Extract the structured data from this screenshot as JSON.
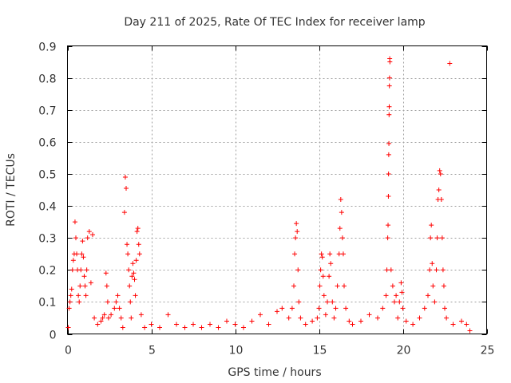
{
  "chart_data": {
    "type": "scatter",
    "title": "Day 211 of 2025, Rate Of TEC Index for receiver lamp",
    "xlabel": "GPS time / hours",
    "ylabel": "ROTI / TECUs",
    "xlim": [
      0,
      25
    ],
    "ylim": [
      0,
      0.9
    ],
    "xticks": [
      0,
      5,
      10,
      15,
      20,
      25
    ],
    "yticks": [
      0,
      0.1,
      0.2,
      0.3,
      0.4,
      0.5,
      0.6,
      0.7,
      0.8,
      0.9
    ],
    "xtick_labels": [
      "0",
      "5",
      "10",
      "15",
      "20",
      "25"
    ],
    "ytick_labels": [
      "0",
      "0.1",
      "0.2",
      "0.3",
      "0.4",
      "0.5",
      "0.6",
      "0.7",
      "0.8",
      "0.9"
    ],
    "grid": true,
    "marker": "+",
    "color": "#ff0000",
    "series": [
      {
        "name": "ROTI",
        "points": [
          [
            0.05,
            0.02
          ],
          [
            0.1,
            0.08
          ],
          [
            0.15,
            0.1
          ],
          [
            0.2,
            0.12
          ],
          [
            0.25,
            0.14
          ],
          [
            0.3,
            0.2
          ],
          [
            0.35,
            0.23
          ],
          [
            0.4,
            0.25
          ],
          [
            0.45,
            0.35
          ],
          [
            0.5,
            0.3
          ],
          [
            0.55,
            0.25
          ],
          [
            0.6,
            0.2
          ],
          [
            0.65,
            0.12
          ],
          [
            0.7,
            0.1
          ],
          [
            0.75,
            0.15
          ],
          [
            0.8,
            0.2
          ],
          [
            0.85,
            0.25
          ],
          [
            0.9,
            0.29
          ],
          [
            0.95,
            0.24
          ],
          [
            1.0,
            0.18
          ],
          [
            1.05,
            0.15
          ],
          [
            1.1,
            0.12
          ],
          [
            1.15,
            0.2
          ],
          [
            1.2,
            0.3
          ],
          [
            1.3,
            0.32
          ],
          [
            1.4,
            0.16
          ],
          [
            1.5,
            0.31
          ],
          [
            1.6,
            0.05
          ],
          [
            1.8,
            0.03
          ],
          [
            2.0,
            0.04
          ],
          [
            2.1,
            0.05
          ],
          [
            2.2,
            0.06
          ],
          [
            2.3,
            0.19
          ],
          [
            2.35,
            0.15
          ],
          [
            2.4,
            0.1
          ],
          [
            2.45,
            0.05
          ],
          [
            2.6,
            0.06
          ],
          [
            2.8,
            0.08
          ],
          [
            2.9,
            0.1
          ],
          [
            3.0,
            0.12
          ],
          [
            3.1,
            0.08
          ],
          [
            3.2,
            0.05
          ],
          [
            3.3,
            0.02
          ],
          [
            3.4,
            0.38
          ],
          [
            3.45,
            0.49
          ],
          [
            3.5,
            0.455
          ],
          [
            3.55,
            0.28
          ],
          [
            3.6,
            0.25
          ],
          [
            3.65,
            0.2
          ],
          [
            3.7,
            0.15
          ],
          [
            3.75,
            0.1
          ],
          [
            3.8,
            0.05
          ],
          [
            3.85,
            0.18
          ],
          [
            3.9,
            0.22
          ],
          [
            3.95,
            0.19
          ],
          [
            4.0,
            0.17
          ],
          [
            4.05,
            0.12
          ],
          [
            4.1,
            0.23
          ],
          [
            4.15,
            0.32
          ],
          [
            4.2,
            0.33
          ],
          [
            4.25,
            0.28
          ],
          [
            4.3,
            0.25
          ],
          [
            4.4,
            0.06
          ],
          [
            4.6,
            0.02
          ],
          [
            5.0,
            0.03
          ],
          [
            5.5,
            0.02
          ],
          [
            6.0,
            0.06
          ],
          [
            6.5,
            0.03
          ],
          [
            7.0,
            0.02
          ],
          [
            7.5,
            0.03
          ],
          [
            8.0,
            0.02
          ],
          [
            8.5,
            0.03
          ],
          [
            9.0,
            0.02
          ],
          [
            9.5,
            0.04
          ],
          [
            10.0,
            0.03
          ],
          [
            10.5,
            0.02
          ],
          [
            11.0,
            0.04
          ],
          [
            11.5,
            0.06
          ],
          [
            12.0,
            0.03
          ],
          [
            12.5,
            0.07
          ],
          [
            12.8,
            0.08
          ],
          [
            13.2,
            0.05
          ],
          [
            13.4,
            0.08
          ],
          [
            13.5,
            0.15
          ],
          [
            13.55,
            0.25
          ],
          [
            13.6,
            0.3
          ],
          [
            13.65,
            0.345
          ],
          [
            13.7,
            0.32
          ],
          [
            13.75,
            0.2
          ],
          [
            13.8,
            0.1
          ],
          [
            13.9,
            0.05
          ],
          [
            14.2,
            0.03
          ],
          [
            14.6,
            0.04
          ],
          [
            14.9,
            0.05
          ],
          [
            15.0,
            0.08
          ],
          [
            15.05,
            0.15
          ],
          [
            15.1,
            0.2
          ],
          [
            15.15,
            0.25
          ],
          [
            15.2,
            0.24
          ],
          [
            15.25,
            0.18
          ],
          [
            15.3,
            0.12
          ],
          [
            15.4,
            0.06
          ],
          [
            15.5,
            0.1
          ],
          [
            15.6,
            0.18
          ],
          [
            15.65,
            0.25
          ],
          [
            15.7,
            0.22
          ],
          [
            15.8,
            0.1
          ],
          [
            15.9,
            0.05
          ],
          [
            16.0,
            0.08
          ],
          [
            16.1,
            0.15
          ],
          [
            16.2,
            0.25
          ],
          [
            16.25,
            0.33
          ],
          [
            16.3,
            0.42
          ],
          [
            16.35,
            0.38
          ],
          [
            16.4,
            0.3
          ],
          [
            16.45,
            0.25
          ],
          [
            16.5,
            0.15
          ],
          [
            16.6,
            0.08
          ],
          [
            16.8,
            0.04
          ],
          [
            17.0,
            0.03
          ],
          [
            17.5,
            0.04
          ],
          [
            18.0,
            0.06
          ],
          [
            18.5,
            0.05
          ],
          [
            18.8,
            0.08
          ],
          [
            19.0,
            0.12
          ],
          [
            19.05,
            0.2
          ],
          [
            19.1,
            0.3
          ],
          [
            19.12,
            0.34
          ],
          [
            19.14,
            0.43
          ],
          [
            19.15,
            0.5
          ],
          [
            19.16,
            0.56
          ],
          [
            19.17,
            0.595
          ],
          [
            19.18,
            0.685
          ],
          [
            19.19,
            0.71
          ],
          [
            19.2,
            0.775
          ],
          [
            19.21,
            0.8
          ],
          [
            19.22,
            0.86
          ],
          [
            19.23,
            0.85
          ],
          [
            19.3,
            0.2
          ],
          [
            19.4,
            0.15
          ],
          [
            19.5,
            0.1
          ],
          [
            19.6,
            0.12
          ],
          [
            19.7,
            0.05
          ],
          [
            19.8,
            0.1
          ],
          [
            19.9,
            0.16
          ],
          [
            19.95,
            0.13
          ],
          [
            20.0,
            0.08
          ],
          [
            20.2,
            0.04
          ],
          [
            20.6,
            0.03
          ],
          [
            21.0,
            0.05
          ],
          [
            21.3,
            0.08
          ],
          [
            21.5,
            0.12
          ],
          [
            21.6,
            0.2
          ],
          [
            21.65,
            0.3
          ],
          [
            21.7,
            0.34
          ],
          [
            21.75,
            0.22
          ],
          [
            21.8,
            0.15
          ],
          [
            21.9,
            0.1
          ],
          [
            22.0,
            0.2
          ],
          [
            22.05,
            0.3
          ],
          [
            22.1,
            0.42
          ],
          [
            22.15,
            0.45
          ],
          [
            22.2,
            0.51
          ],
          [
            22.25,
            0.5
          ],
          [
            22.3,
            0.42
          ],
          [
            22.35,
            0.3
          ],
          [
            22.4,
            0.2
          ],
          [
            22.45,
            0.15
          ],
          [
            22.5,
            0.08
          ],
          [
            22.6,
            0.05
          ],
          [
            22.8,
            0.845
          ],
          [
            23.0,
            0.03
          ],
          [
            23.5,
            0.04
          ],
          [
            23.8,
            0.03
          ],
          [
            24.0,
            0.01
          ]
        ]
      }
    ]
  }
}
